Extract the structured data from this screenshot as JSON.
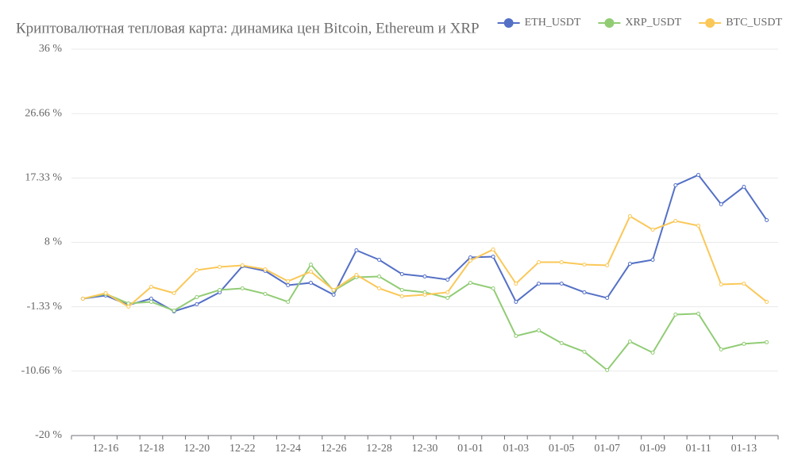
{
  "chart_data": {
    "type": "line",
    "title": "Криптовалютная тепловая карта: динамика цен Bitcoin, Ethereum и XRP",
    "categories": [
      null,
      "12-16",
      null,
      "12-18",
      null,
      "12-20",
      null,
      "12-22",
      null,
      "12-24",
      null,
      "12-26",
      null,
      "12-28",
      null,
      "12-30",
      null,
      "01-01",
      null,
      "01-03",
      null,
      "01-05",
      null,
      "01-07",
      null,
      "01-09",
      null,
      "01-11",
      null,
      "01-13",
      null
    ],
    "series": [
      {
        "name": "ETH_USDT",
        "color": "#5470c6",
        "values": [
          -0.16,
          0.3,
          -1.08,
          -0.16,
          -2.0,
          -0.97,
          0.76,
          4.55,
          3.86,
          1.79,
          2.14,
          0.41,
          6.85,
          5.47,
          3.4,
          3.06,
          2.6,
          5.82,
          5.93,
          -0.62,
          2.02,
          2.02,
          0.76,
          -0.05,
          4.9,
          5.47,
          16.28,
          17.77,
          13.52,
          16.05,
          11.22
        ]
      },
      {
        "name": "XRP_USDT",
        "color": "#91cc75",
        "values": [
          -0.16,
          0.53,
          -0.85,
          -0.62,
          -1.89,
          0.07,
          1.1,
          1.33,
          0.53,
          -0.62,
          4.78,
          0.99,
          2.94,
          3.06,
          1.1,
          0.76,
          -0.05,
          2.14,
          1.33,
          -5.56,
          -4.76,
          -6.6,
          -7.86,
          -10.51,
          -6.37,
          -7.98,
          -2.46,
          -2.34,
          -7.52,
          -6.71,
          -6.48
        ]
      },
      {
        "name": "BTC_USDT",
        "color": "#fac858",
        "values": [
          -0.16,
          0.64,
          -1.31,
          1.56,
          0.64,
          3.98,
          4.44,
          4.67,
          4.09,
          2.37,
          3.75,
          1.1,
          3.29,
          1.33,
          0.18,
          0.41,
          0.76,
          5.36,
          6.97,
          2.02,
          5.13,
          5.13,
          4.78,
          4.67,
          11.79,
          9.84,
          11.1,
          10.41,
          1.91,
          2.02,
          -0.62
        ]
      }
    ],
    "ylim": [
      -20,
      36
    ],
    "yticks": [
      {
        "value": -20,
        "label": "-20 %"
      },
      {
        "value": -10.66,
        "label": "-10.66 %"
      },
      {
        "value": -1.33,
        "label": "-1.33 %"
      },
      {
        "value": 8,
        "label": "8 %"
      },
      {
        "value": 17.33,
        "label": "17.33 %"
      },
      {
        "value": 26.66,
        "label": "26.66 %"
      },
      {
        "value": 36,
        "label": "36 %"
      }
    ],
    "grid": true,
    "legend": "top-right"
  }
}
